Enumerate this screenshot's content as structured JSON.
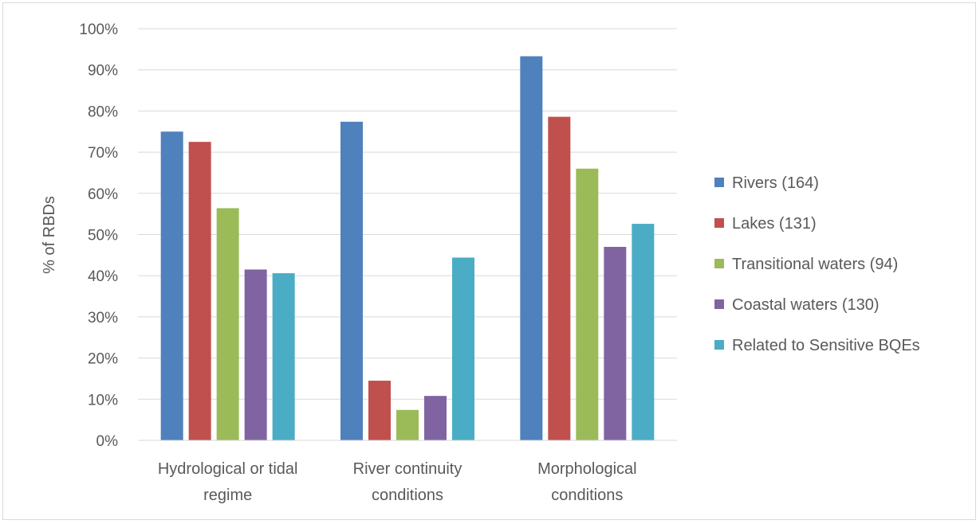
{
  "chart_data": {
    "type": "bar",
    "title": "",
    "xlabel": "",
    "ylabel": "% of RBDs",
    "ylim": [
      0,
      100
    ],
    "yticks": [
      0,
      10,
      20,
      30,
      40,
      50,
      60,
      70,
      80,
      90,
      100
    ],
    "ytick_suffix": "%",
    "grid": true,
    "legend_position": "right",
    "categories": [
      [
        "Hydrological or tidal",
        "regime"
      ],
      [
        "River continuity",
        "conditions"
      ],
      [
        "Morphological",
        "conditions"
      ]
    ],
    "series": [
      {
        "name": "Rivers (164)",
        "color": "#4f81bd",
        "values": [
          75.0,
          77.4,
          93.3
        ]
      },
      {
        "name": "Lakes (131)",
        "color": "#c0504d",
        "values": [
          72.5,
          14.5,
          78.6
        ]
      },
      {
        "name": "Transitional waters (94)",
        "color": "#9bbb59",
        "values": [
          56.4,
          7.4,
          66.0
        ]
      },
      {
        "name": "Coastal waters (130)",
        "color": "#8064a2",
        "values": [
          41.5,
          10.8,
          47.0
        ]
      },
      {
        "name": "Related to Sensitive BQEs",
        "color": "#4bacc6",
        "values": [
          40.6,
          44.4,
          52.6
        ]
      }
    ]
  }
}
